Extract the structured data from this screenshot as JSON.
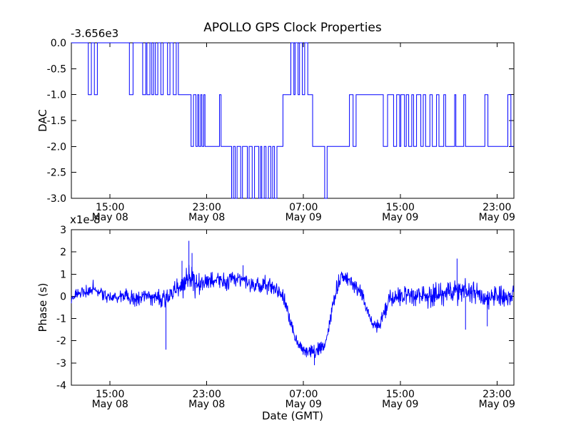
{
  "figure": {
    "title": "APOLLO GPS Clock Properties",
    "background": "#ffffff",
    "line_color": "#0000ff",
    "axis_color": "#000000"
  },
  "chart_data": [
    {
      "type": "line",
      "subtype": "step",
      "title": "APOLLO GPS Clock Properties",
      "ylabel": "DAC",
      "y_offset_text": "-3.656e3",
      "ylim": [
        -3.0,
        0.0
      ],
      "yticks": [
        0.0,
        -0.5,
        -1.0,
        -1.5,
        -2.0,
        -2.5,
        -3.0
      ],
      "ytick_labels": [
        "0.0",
        "-0.5",
        "-1.0",
        "-1.5",
        "-2.0",
        "-2.5",
        "-3.0"
      ],
      "xlim_hours": [
        11.8,
        48.4
      ],
      "xticks_hours": [
        15,
        23,
        31,
        39,
        47
      ],
      "xtick_labels": [
        [
          "15:00",
          "May 08"
        ],
        [
          "23:00",
          "May 08"
        ],
        [
          "07:00",
          "May 09"
        ],
        [
          "15:00",
          "May 09"
        ],
        [
          "23:00",
          "May 09"
        ]
      ],
      "grid": false,
      "steps": [
        [
          11.8,
          0
        ],
        [
          13.2,
          -1
        ],
        [
          13.45,
          0
        ],
        [
          13.7,
          -1
        ],
        [
          13.95,
          0
        ],
        [
          16.6,
          -1
        ],
        [
          16.9,
          0
        ],
        [
          17.7,
          -1
        ],
        [
          17.95,
          0
        ],
        [
          18.05,
          -1
        ],
        [
          18.3,
          0
        ],
        [
          18.45,
          -1
        ],
        [
          18.6,
          0
        ],
        [
          18.75,
          -1
        ],
        [
          18.95,
          0
        ],
        [
          19.2,
          -1
        ],
        [
          19.4,
          0
        ],
        [
          19.75,
          -1
        ],
        [
          19.95,
          0
        ],
        [
          20.23,
          -1
        ],
        [
          20.47,
          0
        ],
        [
          20.65,
          -1
        ],
        [
          21.7,
          -2
        ],
        [
          21.9,
          -1
        ],
        [
          22.1,
          -2
        ],
        [
          22.25,
          -1
        ],
        [
          22.35,
          -2
        ],
        [
          22.5,
          -1
        ],
        [
          22.6,
          -2
        ],
        [
          22.75,
          -1
        ],
        [
          22.85,
          -2
        ],
        [
          24.05,
          -1
        ],
        [
          24.18,
          -2
        ],
        [
          25.05,
          -3
        ],
        [
          25.2,
          -2
        ],
        [
          25.35,
          -3
        ],
        [
          25.5,
          -2
        ],
        [
          25.8,
          -3
        ],
        [
          25.95,
          -2
        ],
        [
          26.35,
          -3
        ],
        [
          26.5,
          -2
        ],
        [
          26.75,
          -3
        ],
        [
          26.95,
          -2
        ],
        [
          27.3,
          -3
        ],
        [
          27.45,
          -2
        ],
        [
          27.55,
          -3
        ],
        [
          27.75,
          -2
        ],
        [
          27.9,
          -3
        ],
        [
          28.1,
          -2
        ],
        [
          28.3,
          -3
        ],
        [
          28.45,
          -2
        ],
        [
          28.6,
          -3
        ],
        [
          28.8,
          -2
        ],
        [
          29.3,
          -1
        ],
        [
          29.95,
          0
        ],
        [
          30.2,
          -1
        ],
        [
          30.3,
          0
        ],
        [
          30.55,
          -1
        ],
        [
          30.67,
          0
        ],
        [
          30.9,
          -1
        ],
        [
          31.1,
          0
        ],
        [
          31.35,
          -1
        ],
        [
          31.75,
          -2
        ],
        [
          32.75,
          -3
        ],
        [
          32.95,
          -2
        ],
        [
          34.8,
          -1
        ],
        [
          35.1,
          -2
        ],
        [
          35.35,
          -1
        ],
        [
          37.6,
          -2
        ],
        [
          37.95,
          -1
        ],
        [
          38.45,
          -2
        ],
        [
          38.7,
          -1
        ],
        [
          38.95,
          -2
        ],
        [
          39.05,
          -1
        ],
        [
          39.35,
          -2
        ],
        [
          39.5,
          -1
        ],
        [
          39.7,
          -2
        ],
        [
          39.95,
          -1
        ],
        [
          40.1,
          -2
        ],
        [
          40.35,
          -1
        ],
        [
          40.7,
          -2
        ],
        [
          40.9,
          -1
        ],
        [
          41.1,
          -2
        ],
        [
          41.45,
          -1
        ],
        [
          41.65,
          -2
        ],
        [
          42.0,
          -1
        ],
        [
          42.2,
          -2
        ],
        [
          42.6,
          -1
        ],
        [
          42.75,
          -2
        ],
        [
          43.5,
          -1
        ],
        [
          43.6,
          -2
        ],
        [
          44.25,
          -1
        ],
        [
          44.4,
          -2
        ],
        [
          46.0,
          -1
        ],
        [
          46.25,
          -2
        ],
        [
          47.9,
          -1
        ],
        [
          48.15,
          -2
        ]
      ]
    },
    {
      "type": "line",
      "subtype": "noisy",
      "ylabel": "Phase (s)",
      "xlabel": "Date (GMT)",
      "y_offset_text": "x1e-8",
      "ylim": [
        -4,
        3
      ],
      "yticks": [
        3,
        2,
        1,
        0,
        -1,
        -2,
        -3,
        -4
      ],
      "ytick_labels": [
        "3",
        "2",
        "1",
        "0",
        "-1",
        "-2",
        "-3",
        "-4"
      ],
      "xlim_hours": [
        11.8,
        48.4
      ],
      "xticks_hours": [
        15,
        23,
        31,
        39,
        47
      ],
      "xtick_labels": [
        [
          "15:00",
          "May 08"
        ],
        [
          "23:00",
          "May 08"
        ],
        [
          "07:00",
          "May 09"
        ],
        [
          "15:00",
          "May 09"
        ],
        [
          "23:00",
          "May 09"
        ]
      ],
      "grid": false,
      "noise_seed": 1337,
      "sample_step_hours": 0.03,
      "envelope": [
        [
          11.8,
          0.0,
          0.25
        ],
        [
          13.0,
          0.2,
          0.3
        ],
        [
          13.6,
          0.35,
          0.25
        ],
        [
          14.5,
          0.05,
          0.3
        ],
        [
          15.3,
          -0.1,
          0.3
        ],
        [
          16.2,
          0.1,
          0.3
        ],
        [
          17.0,
          -0.15,
          0.35
        ],
        [
          18.0,
          0.05,
          0.3
        ],
        [
          18.9,
          -0.1,
          0.45
        ],
        [
          19.6,
          -0.15,
          0.55
        ],
        [
          20.1,
          0.15,
          0.5
        ],
        [
          20.9,
          0.45,
          0.55
        ],
        [
          21.5,
          0.8,
          0.65
        ],
        [
          22.0,
          0.6,
          0.5
        ],
        [
          22.7,
          0.55,
          0.45
        ],
        [
          23.3,
          0.75,
          0.4
        ],
        [
          24.0,
          0.7,
          0.35
        ],
        [
          24.6,
          0.55,
          0.35
        ],
        [
          25.2,
          0.85,
          0.4
        ],
        [
          25.8,
          0.8,
          0.35
        ],
        [
          26.5,
          0.6,
          0.35
        ],
        [
          27.2,
          0.5,
          0.4
        ],
        [
          27.9,
          0.55,
          0.45
        ],
        [
          28.5,
          0.4,
          0.35
        ],
        [
          29.2,
          0.15,
          0.3
        ],
        [
          29.6,
          -0.4,
          0.3
        ],
        [
          29.9,
          -1.2,
          0.35
        ],
        [
          30.3,
          -1.9,
          0.35
        ],
        [
          30.7,
          -2.3,
          0.3
        ],
        [
          31.2,
          -2.45,
          0.3
        ],
        [
          31.8,
          -2.5,
          0.3
        ],
        [
          32.3,
          -2.3,
          0.35
        ],
        [
          32.8,
          -2.1,
          0.3
        ],
        [
          33.1,
          -1.4,
          0.3
        ],
        [
          33.4,
          -0.5,
          0.3
        ],
        [
          33.7,
          0.3,
          0.35
        ],
        [
          34.0,
          0.8,
          0.35
        ],
        [
          34.4,
          0.9,
          0.35
        ],
        [
          34.8,
          0.6,
          0.35
        ],
        [
          35.2,
          0.35,
          0.4
        ],
        [
          35.7,
          0.3,
          0.4
        ],
        [
          36.1,
          -0.3,
          0.35
        ],
        [
          36.5,
          -1.0,
          0.35
        ],
        [
          36.9,
          -1.35,
          0.3
        ],
        [
          37.3,
          -1.25,
          0.3
        ],
        [
          37.7,
          -0.7,
          0.35
        ],
        [
          38.1,
          -0.15,
          0.4
        ],
        [
          38.8,
          0.0,
          0.45
        ],
        [
          39.5,
          0.1,
          0.45
        ],
        [
          40.3,
          0.0,
          0.5
        ],
        [
          41.0,
          0.05,
          0.5
        ],
        [
          41.8,
          0.0,
          0.55
        ],
        [
          42.5,
          0.1,
          0.55
        ],
        [
          43.2,
          0.15,
          0.6
        ],
        [
          43.8,
          0.3,
          0.7
        ],
        [
          44.3,
          0.0,
          0.65
        ],
        [
          44.9,
          0.1,
          0.5
        ],
        [
          45.5,
          0.15,
          0.5
        ],
        [
          46.1,
          -0.2,
          0.55
        ],
        [
          46.7,
          0.1,
          0.5
        ],
        [
          47.3,
          0.1,
          0.5
        ],
        [
          47.8,
          -0.2,
          0.5
        ],
        [
          48.4,
          0.25,
          0.4
        ]
      ],
      "spikes": [
        [
          19.62,
          -2.4
        ],
        [
          20.95,
          1.6
        ],
        [
          21.52,
          2.5
        ],
        [
          21.78,
          1.95
        ],
        [
          26.0,
          1.4
        ],
        [
          31.9,
          -3.1
        ],
        [
          43.7,
          1.7
        ],
        [
          44.4,
          -1.5
        ],
        [
          46.2,
          -1.35
        ]
      ]
    }
  ]
}
